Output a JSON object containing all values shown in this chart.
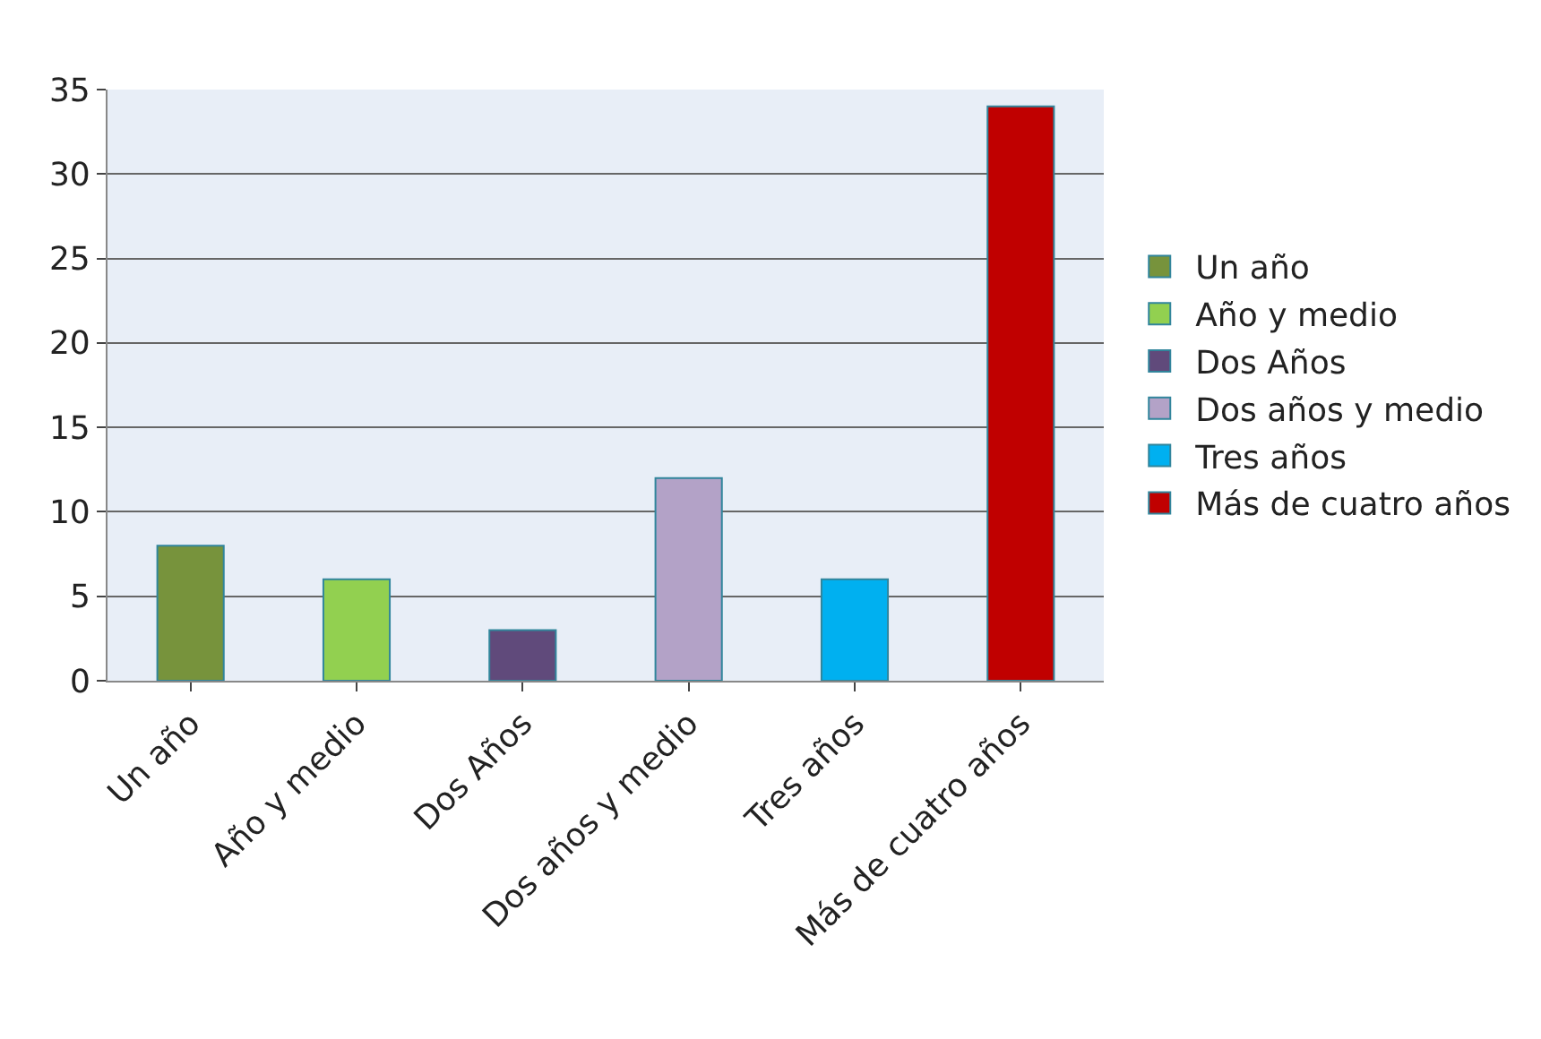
{
  "chart_data": {
    "type": "bar",
    "categories": [
      "Un año",
      "Año y medio",
      "Dos Años",
      "Dos años y medio",
      "Tres años",
      "Más de cuatro años"
    ],
    "series": [
      {
        "name": "Un año",
        "color": "#77933c",
        "values": [
          8,
          null,
          null,
          null,
          null,
          null
        ]
      },
      {
        "name": "Año y medio",
        "color": "#92d050",
        "values": [
          null,
          6,
          null,
          null,
          null,
          null
        ]
      },
      {
        "name": "Dos Años",
        "color": "#604a7b",
        "values": [
          null,
          null,
          3,
          null,
          null,
          null
        ]
      },
      {
        "name": "Dos años y medio",
        "color": "#b3a2c7",
        "values": [
          null,
          null,
          null,
          12,
          null,
          null
        ]
      },
      {
        "name": "Tres años",
        "color": "#00b0f0",
        "values": [
          null,
          null,
          null,
          null,
          6,
          null
        ]
      },
      {
        "name": "Más de cuatro años",
        "color": "#c00000",
        "values": [
          null,
          null,
          null,
          null,
          null,
          34
        ]
      }
    ],
    "ylim": [
      0,
      35
    ],
    "yticks": [
      0,
      5,
      10,
      15,
      20,
      25,
      30,
      35
    ],
    "grid": "y",
    "legend": "right"
  }
}
